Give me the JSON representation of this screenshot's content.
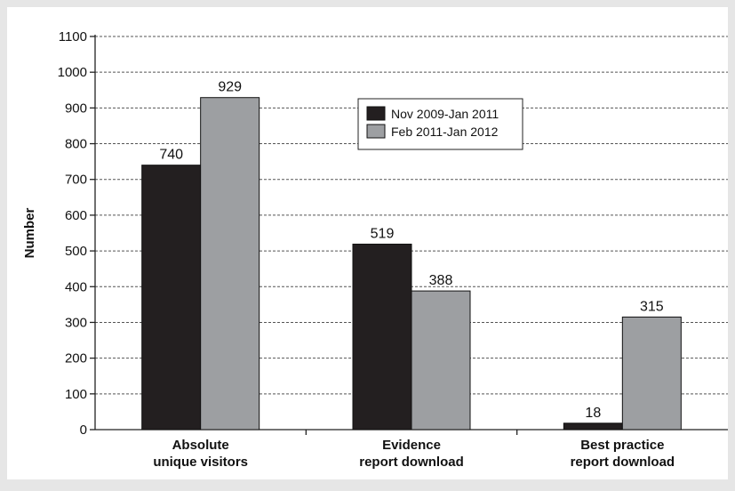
{
  "chart_data": {
    "type": "bar",
    "title": "",
    "xlabel": "",
    "ylabel": "Number",
    "ylim": [
      0,
      1100
    ],
    "yticks": [
      0,
      100,
      200,
      300,
      400,
      500,
      600,
      700,
      800,
      900,
      1000,
      1100
    ],
    "grid": true,
    "legend_position": "top-center",
    "categories": [
      [
        "Absolute",
        "unique visitors"
      ],
      [
        "Evidence",
        "report download"
      ],
      [
        "Best practice",
        "report download"
      ]
    ],
    "series": [
      {
        "name": "Nov 2009-Jan 2011",
        "color": "#231f20",
        "values": [
          740,
          519,
          18
        ]
      },
      {
        "name": "Feb 2011-Jan 2012",
        "color": "#9d9fa2",
        "values": [
          929,
          388,
          315
        ]
      }
    ],
    "colors": {
      "background": "#e6e6e6",
      "plot_background": "#ffffff",
      "grid": "#555555"
    }
  }
}
